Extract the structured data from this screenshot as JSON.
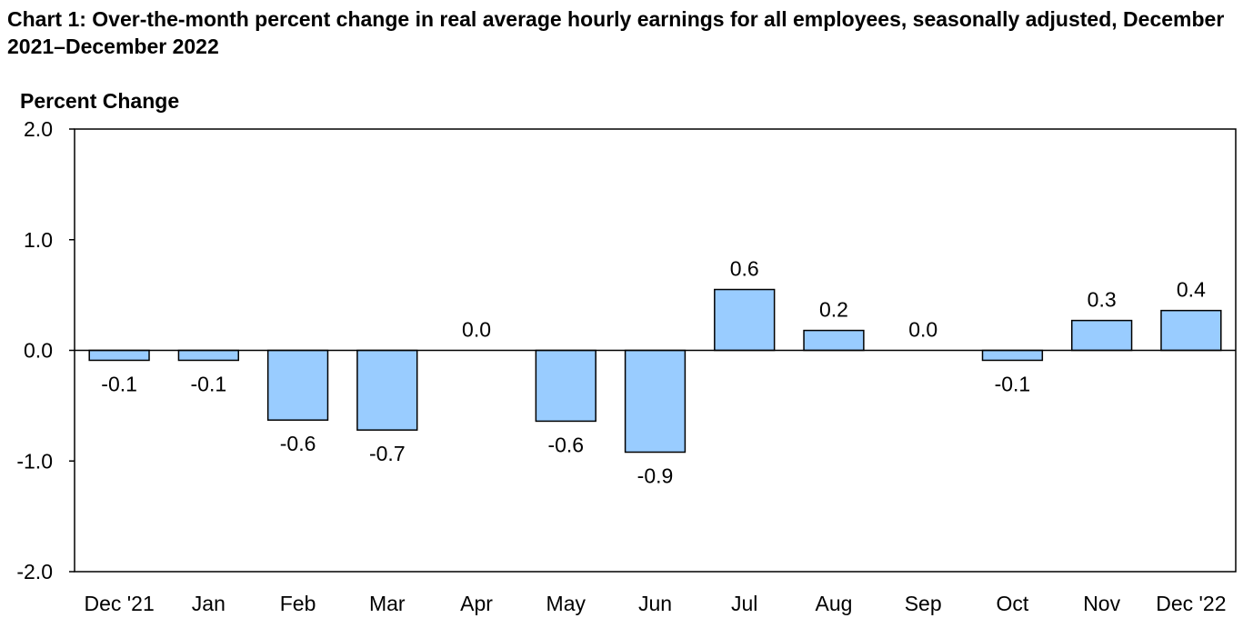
{
  "chart_data": {
    "type": "bar",
    "title": "Chart 1: Over-the-month percent change in real average hourly earnings for all employees, seasonally adjusted, December 2021–December 2022",
    "ylabel": "Percent Change",
    "xlabel": "",
    "ylim": [
      -2.0,
      2.0
    ],
    "yticks": [
      "2.0",
      "1.0",
      "0.0",
      "-1.0",
      "-2.0"
    ],
    "ytick_values": [
      2.0,
      1.0,
      0.0,
      -1.0,
      -2.0
    ],
    "categories": [
      "Dec '21",
      "Jan",
      "Feb",
      "Mar",
      "Apr",
      "May",
      "Jun",
      "Jul",
      "Aug",
      "Sep",
      "Oct",
      "Nov",
      "Dec '22"
    ],
    "values": [
      -0.09,
      -0.09,
      -0.63,
      -0.72,
      0.0,
      -0.64,
      -0.92,
      0.55,
      0.18,
      0.0,
      -0.09,
      0.27,
      0.36
    ],
    "data_labels": [
      "-0.1",
      "-0.1",
      "-0.6",
      "-0.7",
      "0.0",
      "-0.6",
      "-0.9",
      "0.6",
      "0.2",
      "0.0",
      "-0.1",
      "0.3",
      "0.4"
    ],
    "grid": false,
    "legend": "none",
    "bar_color": "#99ccff",
    "bar_edge_color": "#000000"
  }
}
